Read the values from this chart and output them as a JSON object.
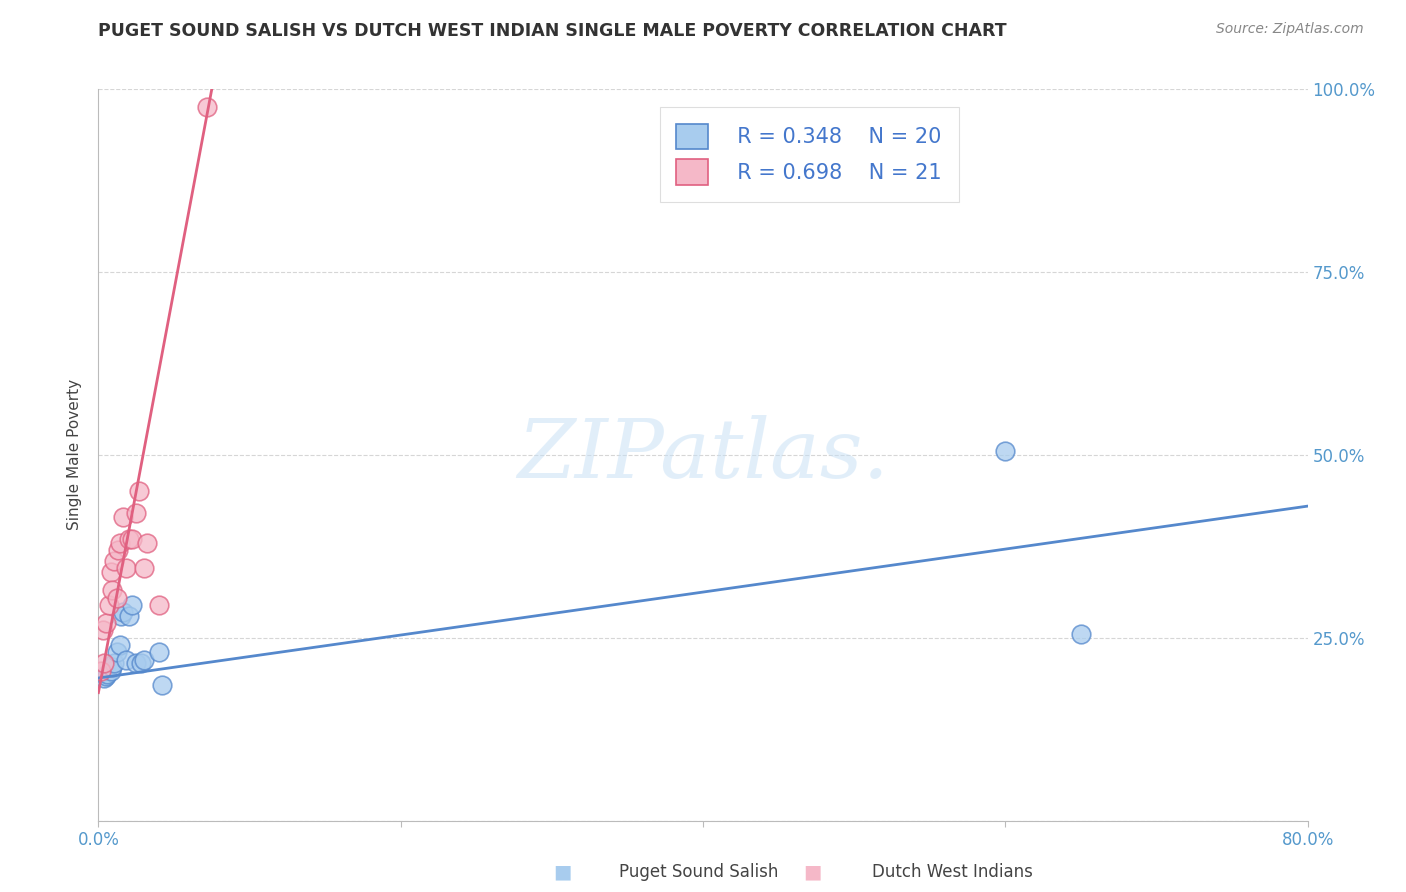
{
  "title": "PUGET SOUND SALISH VS DUTCH WEST INDIAN SINGLE MALE POVERTY CORRELATION CHART",
  "source": "Source: ZipAtlas.com",
  "ylabel": "Single Male Poverty",
  "xlim": [
    0.0,
    0.8
  ],
  "ylim": [
    0.0,
    1.0
  ],
  "xticks": [
    0.0,
    0.2,
    0.4,
    0.6,
    0.8
  ],
  "xtick_labels": [
    "0.0%",
    "",
    "",
    "",
    "80.0%"
  ],
  "yticks": [
    0.0,
    0.25,
    0.5,
    0.75,
    1.0
  ],
  "ytick_labels_right": [
    "",
    "25.0%",
    "50.0%",
    "75.0%",
    "100.0%"
  ],
  "blue_label": "Puget Sound Salish",
  "pink_label": "Dutch West Indians",
  "blue_R": "R = 0.348",
  "blue_N": "N = 20",
  "pink_R": "R = 0.698",
  "pink_N": "N = 21",
  "blue_dot_color": "#A8CCEE",
  "pink_dot_color": "#F5B8C8",
  "blue_line_color": "#5588CC",
  "pink_line_color": "#E06080",
  "legend_text_color": "#4477CC",
  "right_tick_color": "#5599CC",
  "watermark_text": "ZIPatlas.",
  "blue_scatter_x": [
    0.004,
    0.005,
    0.006,
    0.008,
    0.009,
    0.01,
    0.012,
    0.014,
    0.015,
    0.016,
    0.018,
    0.02,
    0.022,
    0.025,
    0.028,
    0.03,
    0.04,
    0.042,
    0.6,
    0.65
  ],
  "blue_scatter_y": [
    0.195,
    0.198,
    0.2,
    0.205,
    0.21,
    0.215,
    0.23,
    0.24,
    0.28,
    0.285,
    0.22,
    0.28,
    0.295,
    0.215,
    0.215,
    0.22,
    0.23,
    0.185,
    0.505,
    0.255
  ],
  "pink_scatter_x": [
    0.002,
    0.003,
    0.004,
    0.005,
    0.007,
    0.008,
    0.009,
    0.01,
    0.012,
    0.013,
    0.014,
    0.016,
    0.018,
    0.02,
    0.022,
    0.025,
    0.027,
    0.03,
    0.032,
    0.04,
    0.072
  ],
  "pink_scatter_y": [
    0.205,
    0.26,
    0.215,
    0.27,
    0.295,
    0.34,
    0.315,
    0.355,
    0.305,
    0.37,
    0.38,
    0.415,
    0.345,
    0.385,
    0.385,
    0.42,
    0.45,
    0.345,
    0.38,
    0.295,
    0.975
  ],
  "blue_line_x0": 0.0,
  "blue_line_y0": 0.195,
  "blue_line_x1": 0.8,
  "blue_line_y1": 0.43,
  "pink_line_x0": 0.0,
  "pink_line_y0": 0.175,
  "pink_line_x1": 0.075,
  "pink_line_y1": 1.0
}
